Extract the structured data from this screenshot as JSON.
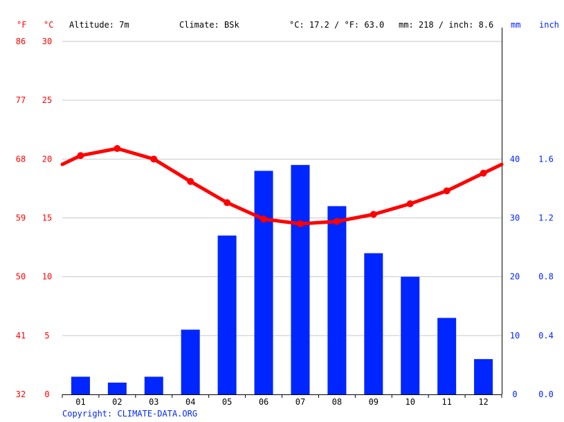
{
  "header": {
    "unit_f": "°F",
    "unit_c": "°C",
    "altitude": "Altitude: 7m",
    "climate": "Climate: BSk",
    "temp_avg": "°C: 17.2 / °F: 63.0",
    "precip_total": "mm: 218 / inch: 8.6",
    "unit_mm": "mm",
    "unit_inch": "inch"
  },
  "copyright": "Copyright: CLIMATE-DATA.ORG",
  "colors": {
    "temperature": "#ff0000",
    "precipitation": "#0026ff",
    "text": "#000000",
    "grid": "#c8c8c8"
  },
  "chart_data": {
    "type": "bar+line",
    "categories": [
      "01",
      "02",
      "03",
      "04",
      "05",
      "06",
      "07",
      "08",
      "09",
      "10",
      "11",
      "12"
    ],
    "series": [
      {
        "name": "°C",
        "type": "line",
        "axis": "left",
        "values": [
          20.3,
          20.9,
          20.0,
          18.1,
          16.3,
          14.9,
          14.5,
          14.7,
          15.3,
          16.2,
          17.3,
          18.8
        ],
        "color": "#ff0000"
      },
      {
        "name": "mm",
        "type": "bar",
        "axis": "right",
        "values": [
          3,
          2,
          3,
          11,
          27,
          38,
          39,
          32,
          24,
          20,
          13,
          6
        ],
        "color": "#0026ff"
      }
    ],
    "y_left_c": {
      "ylim": [
        0,
        30
      ],
      "ticks": [
        "0",
        "5",
        "10",
        "15",
        "20",
        "25",
        "30"
      ]
    },
    "y_left_f": {
      "ticks": [
        "32",
        "41",
        "50",
        "59",
        "68",
        "77",
        "86"
      ]
    },
    "y_right_mm": {
      "ylim": [
        0,
        60
      ],
      "ticks": [
        "0",
        "10",
        "20",
        "30",
        "40"
      ]
    },
    "y_right_inch": {
      "ticks": [
        "0.0",
        "0.4",
        "0.8",
        "1.2",
        "1.6"
      ]
    },
    "grid": true
  }
}
